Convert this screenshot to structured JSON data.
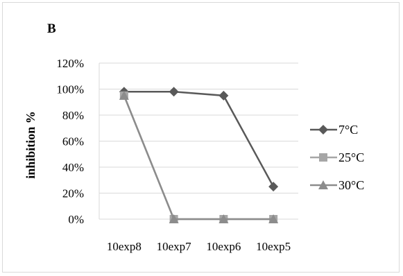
{
  "chart_data": {
    "type": "line",
    "panel_label": "B",
    "title": "",
    "xlabel": "",
    "ylabel": "inhibition %",
    "categories": [
      "10exp8",
      "10exp7",
      "10exp6",
      "10exp5"
    ],
    "y_ticks": [
      "0%",
      "20%",
      "40%",
      "60%",
      "80%",
      "100%",
      "120%"
    ],
    "ylim": [
      0,
      120
    ],
    "grid": "horizontal",
    "legend_position": "right",
    "series": [
      {
        "name": "7°C",
        "values": [
          98,
          98,
          95,
          25
        ],
        "color": "#595959",
        "marker": "diamond"
      },
      {
        "name": "25°C",
        "values": [
          95,
          0,
          0,
          0
        ],
        "color": "#a6a6a6",
        "marker": "square"
      },
      {
        "name": "30°C",
        "values": [
          95,
          0,
          0,
          0
        ],
        "color": "#8c8c8c",
        "marker": "triangle"
      }
    ]
  }
}
